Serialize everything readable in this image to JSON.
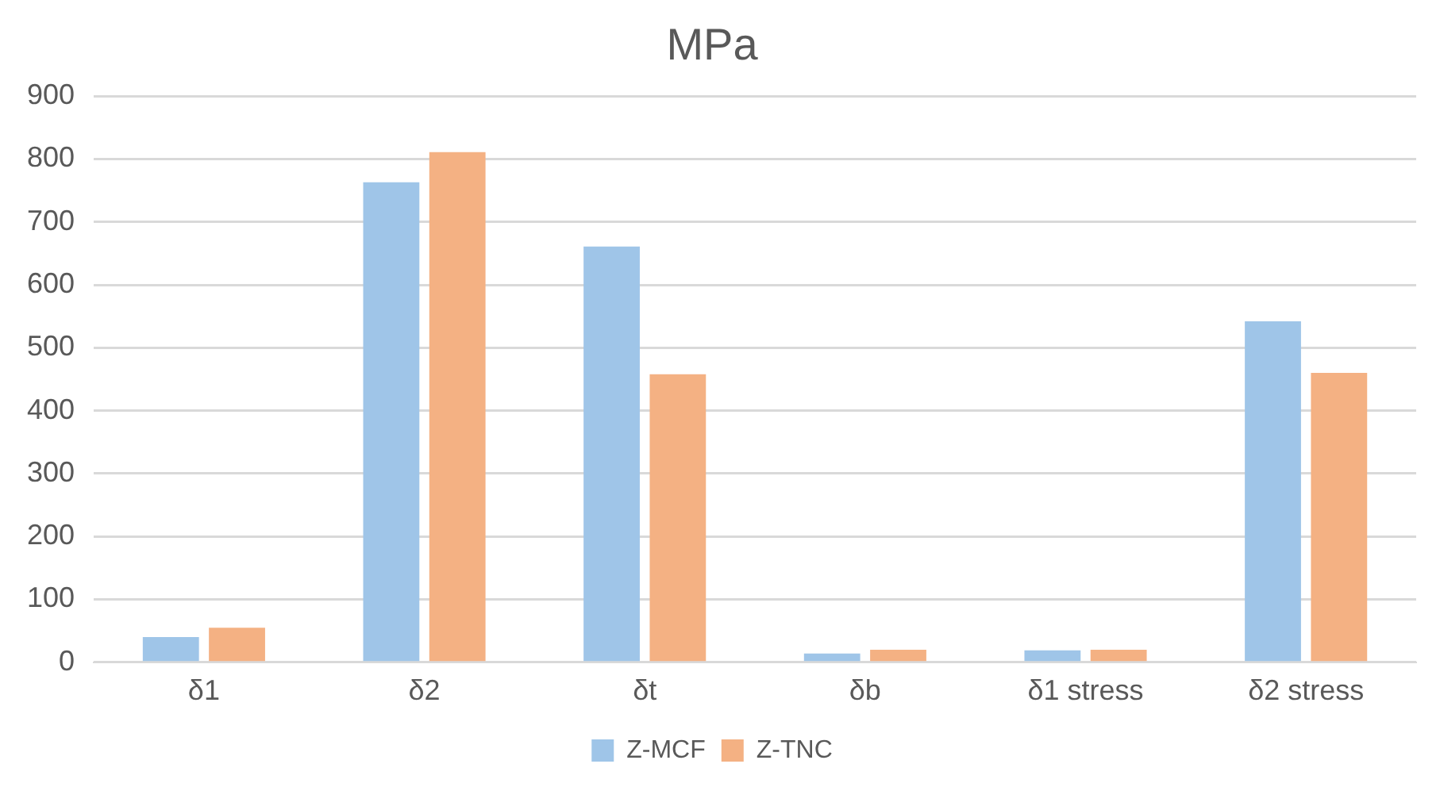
{
  "chart_data": {
    "type": "bar",
    "title": "MPa",
    "categories": [
      "δ1",
      "δ2",
      "δt",
      "δb",
      "δ1 stress",
      "δ2 stress"
    ],
    "series": [
      {
        "name": "Z-MCF",
        "color": "#9fc5e8",
        "values": [
          40,
          763,
          661,
          14,
          19,
          542
        ]
      },
      {
        "name": "Z-TNC",
        "color": "#f4b183",
        "values": [
          55,
          811,
          458,
          20,
          20,
          460
        ]
      }
    ],
    "ylim": [
      0,
      900
    ],
    "yticks": [
      0,
      100,
      200,
      300,
      400,
      500,
      600,
      700,
      800,
      900
    ],
    "grid": "y",
    "legend": "bottom"
  }
}
